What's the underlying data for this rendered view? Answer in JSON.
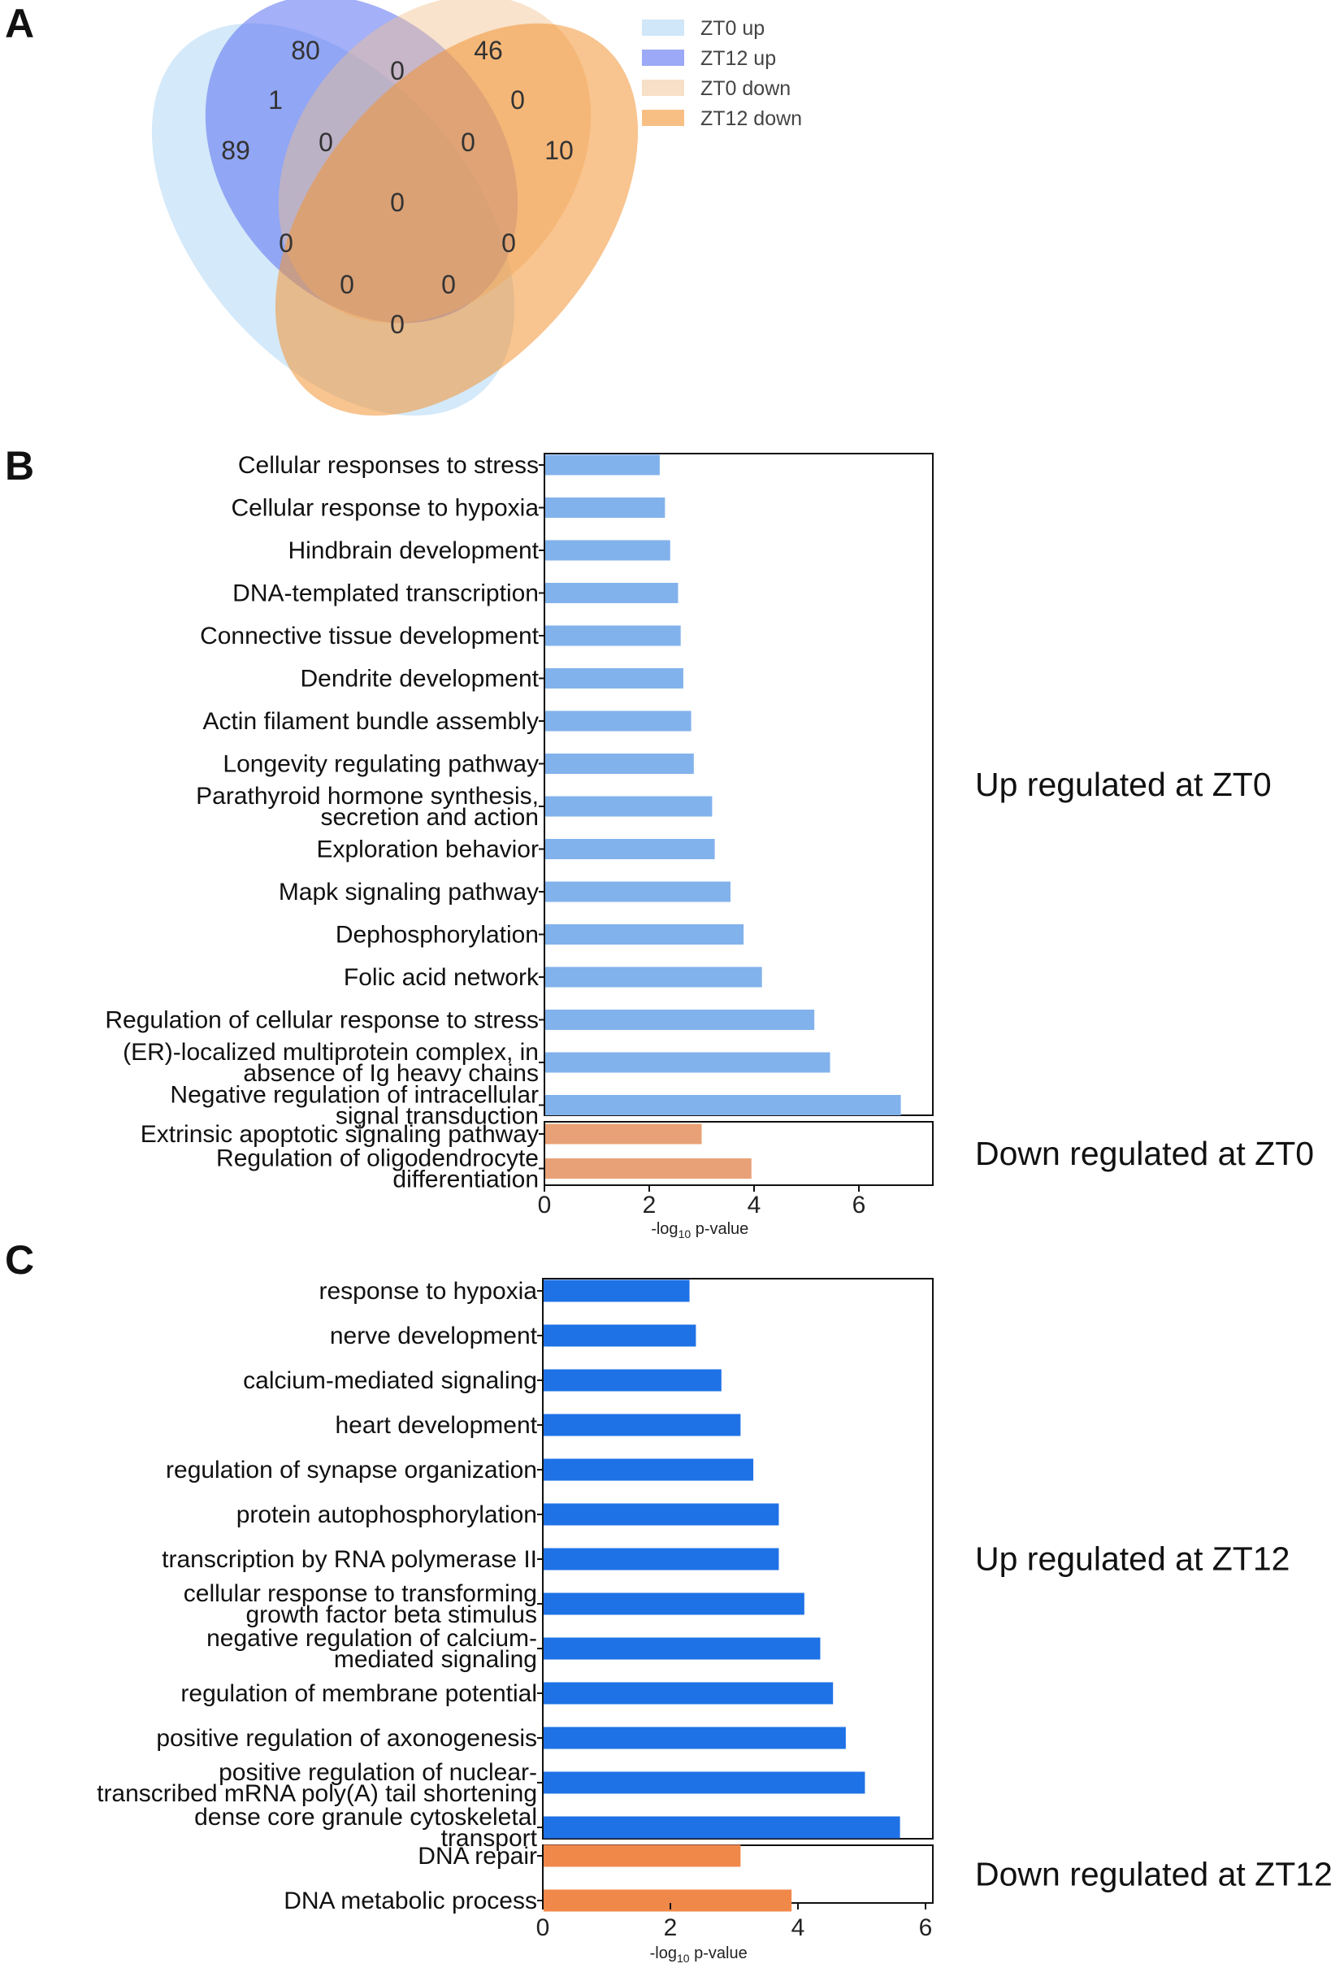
{
  "panel_labels": [
    "A",
    "B",
    "C"
  ],
  "venn": {
    "sets": [
      {
        "name": "ZT0 up",
        "color": "#9fcff2"
      },
      {
        "name": "ZT12 up",
        "color": "#5a6ff0"
      },
      {
        "name": "ZT0 down",
        "color": "#f2c08f"
      },
      {
        "name": "ZT12 down",
        "color": "#f39433"
      }
    ],
    "region_counts": {
      "zt0_up_only": "89",
      "zt12_up_only": "80",
      "zt0_down_only": "46",
      "zt12_down_only": "10",
      "zt0up_zt12up": "1",
      "zt12up_zt0down": "0",
      "zt0down_zt12down": "0",
      "zt0up_zt12up_zt0down": "0",
      "zt12up_zt0down_zt12down": "0",
      "all_four": "0",
      "zt0up_zt0down": "0",
      "zt12up_zt12down": "0",
      "zt0up_zt0down_zt12down": "0",
      "zt0up_zt12up_zt12down": "0",
      "zt0up_zt12down": "0"
    }
  },
  "chart_data": [
    {
      "panel": "B",
      "type": "bar",
      "orientation": "horizontal",
      "xlabel_prefix": "-log",
      "xlabel_sub": "10",
      "xlabel_suffix": " p-value",
      "xlim": [
        0,
        7.4
      ],
      "xticks": [
        0,
        2,
        4,
        6
      ],
      "groups": [
        {
          "name": "Up regulated at ZT0",
          "color": "#82b2ec",
          "categories": [
            [
              "Cellular responses to stress"
            ],
            [
              "Cellular response to hypoxia"
            ],
            [
              "Hindbrain development"
            ],
            [
              "DNA-templated transcription"
            ],
            [
              "Connective tissue development"
            ],
            [
              "Dendrite development"
            ],
            [
              "Actin filament bundle assembly"
            ],
            [
              "Longevity regulating pathway"
            ],
            [
              "Parathyroid hormone synthesis,",
              "secretion and action"
            ],
            [
              "Exploration behavior"
            ],
            [
              "Mapk signaling pathway"
            ],
            [
              "Dephosphorylation"
            ],
            [
              "Folic acid network"
            ],
            [
              "Regulation of cellular response to stress"
            ],
            [
              "(ER)-localized multiprotein complex, in",
              "absence of Ig heavy chains"
            ],
            [
              "Negative regulation of intracellular",
              "signal transduction"
            ]
          ],
          "values": [
            2.2,
            2.3,
            2.4,
            2.55,
            2.6,
            2.65,
            2.8,
            2.85,
            3.2,
            3.25,
            3.55,
            3.8,
            4.15,
            5.15,
            5.45,
            6.8
          ]
        },
        {
          "name": "Down regulated at ZT0",
          "color": "#e8a176",
          "categories": [
            [
              "Extrinsic apoptotic signaling pathway"
            ],
            [
              "Regulation of oligodendrocyte",
              "differentiation"
            ]
          ],
          "values": [
            3.0,
            3.95
          ]
        }
      ]
    },
    {
      "panel": "C",
      "type": "bar",
      "orientation": "horizontal",
      "xlabel_prefix": "-log",
      "xlabel_sub": "10",
      "xlabel_suffix": " p-value",
      "xlim": [
        0,
        6.1
      ],
      "xticks": [
        0,
        2,
        4,
        6
      ],
      "groups": [
        {
          "name": "Up regulated at ZT12",
          "color": "#1f72e6",
          "categories": [
            [
              "response to hypoxia"
            ],
            [
              "nerve development"
            ],
            [
              "calcium-mediated signaling"
            ],
            [
              "heart development"
            ],
            [
              "regulation of synapse organization"
            ],
            [
              "protein autophosphorylation"
            ],
            [
              "transcription by RNA polymerase II"
            ],
            [
              "cellular response to transforming",
              "growth factor beta stimulus"
            ],
            [
              "negative regulation of calcium-",
              "mediated signaling"
            ],
            [
              "regulation of membrane potential"
            ],
            [
              "positive regulation of axonogenesis"
            ],
            [
              "positive regulation of nuclear-",
              "transcribed mRNA poly(A) tail shortening"
            ],
            [
              "dense core granule cytoskeletal",
              "transport"
            ]
          ],
          "values": [
            2.3,
            2.4,
            2.8,
            3.1,
            3.3,
            3.7,
            3.7,
            4.1,
            4.35,
            4.55,
            4.75,
            5.05,
            5.6
          ]
        },
        {
          "name": "Down regulated at ZT12",
          "color": "#f0884a",
          "categories": [
            [
              "DNA repair"
            ],
            [
              "DNA metabolic process"
            ]
          ],
          "values": [
            3.1,
            3.9
          ]
        }
      ]
    }
  ]
}
